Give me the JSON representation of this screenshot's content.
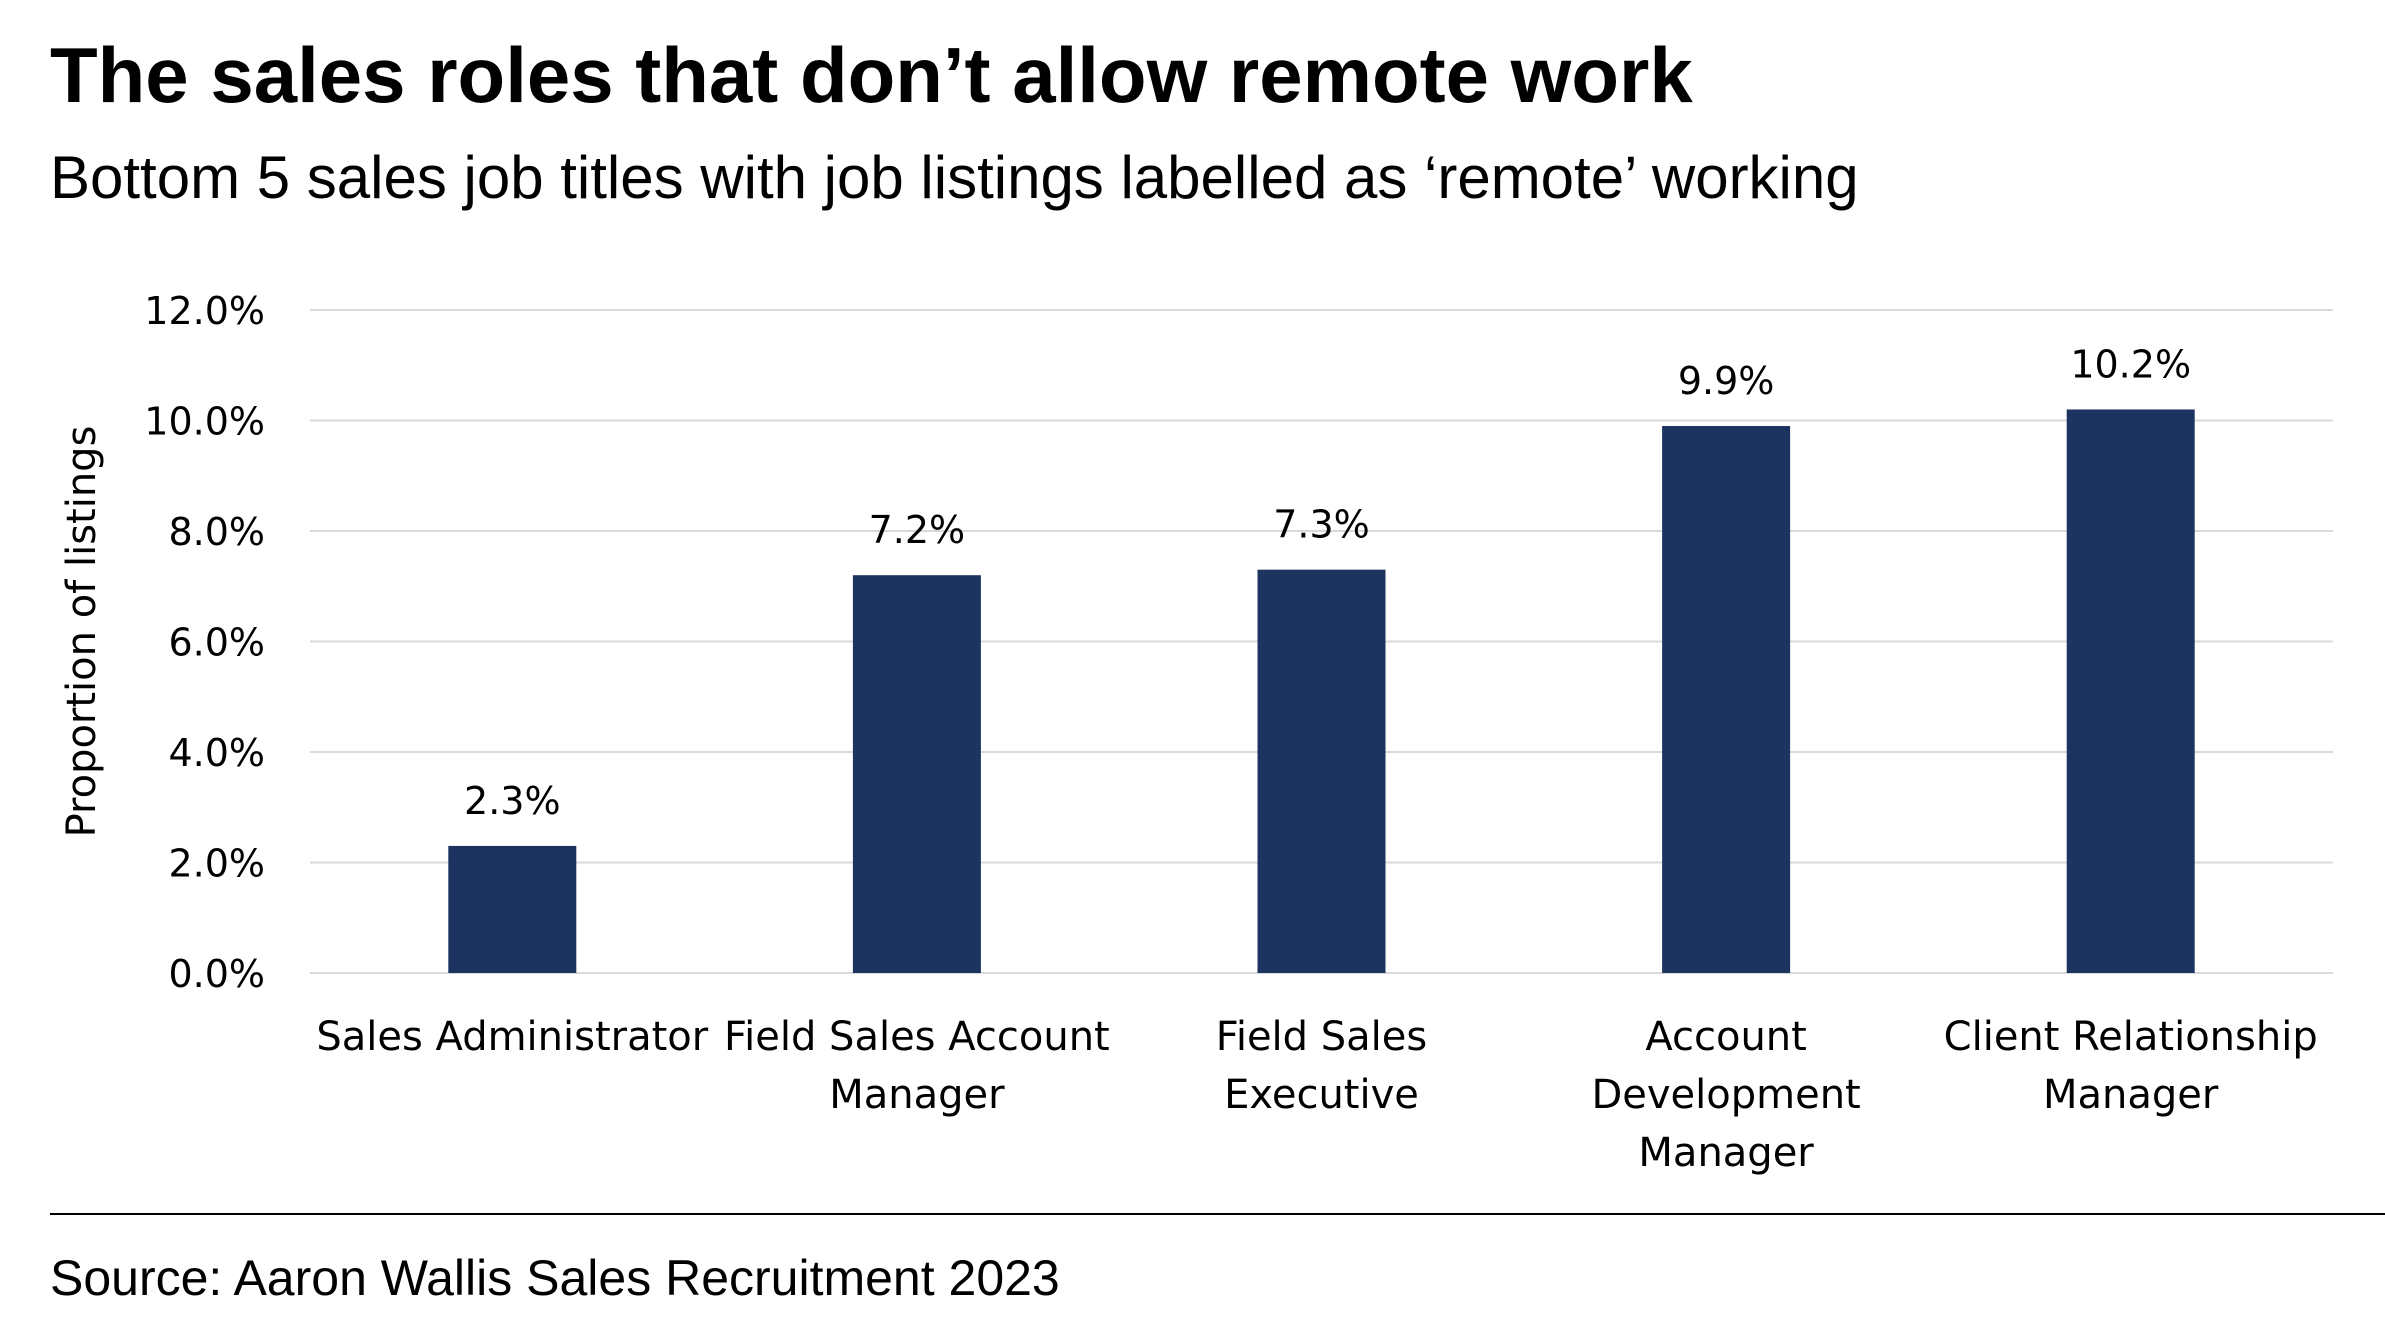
{
  "header": {
    "title": "The sales roles that don’t allow remote work",
    "subtitle": "Bottom 5 sales job titles with job listings labelled as ‘remote’ working"
  },
  "footer": {
    "source": "Source: Aaron Wallis Sales Recruitment 2023"
  },
  "chart_data": {
    "type": "bar",
    "categories": [
      "Sales Administrator",
      "Field Sales Account Manager",
      "Field Sales Executive",
      "Account Development Manager",
      "Client Relationship Manager"
    ],
    "category_display_lines": [
      [
        "Sales Administrator"
      ],
      [
        "Field Sales Account",
        "Manager"
      ],
      [
        "Field Sales Executive"
      ],
      [
        "Account",
        "Development",
        "Manager"
      ],
      [
        "Client Relationship",
        "Manager"
      ]
    ],
    "values": [
      2.3,
      7.2,
      7.3,
      9.9,
      10.2
    ],
    "data_labels": [
      "2.3%",
      "7.2%",
      "7.3%",
      "9.9%",
      "10.2%"
    ],
    "ylabel": "Proportion of listings",
    "xlabel": "",
    "ylim": [
      0,
      12
    ],
    "yticks": [
      0,
      2,
      4,
      6,
      8,
      10,
      12
    ],
    "ytick_labels": [
      "0.0%",
      "2.0%",
      "4.0%",
      "6.0%",
      "8.0%",
      "10.0%",
      "12.0%"
    ],
    "grid": true,
    "legend": "none",
    "colors": {
      "bar": "#1d3461",
      "grid": "#d9d9d9",
      "text": "#000000"
    }
  }
}
